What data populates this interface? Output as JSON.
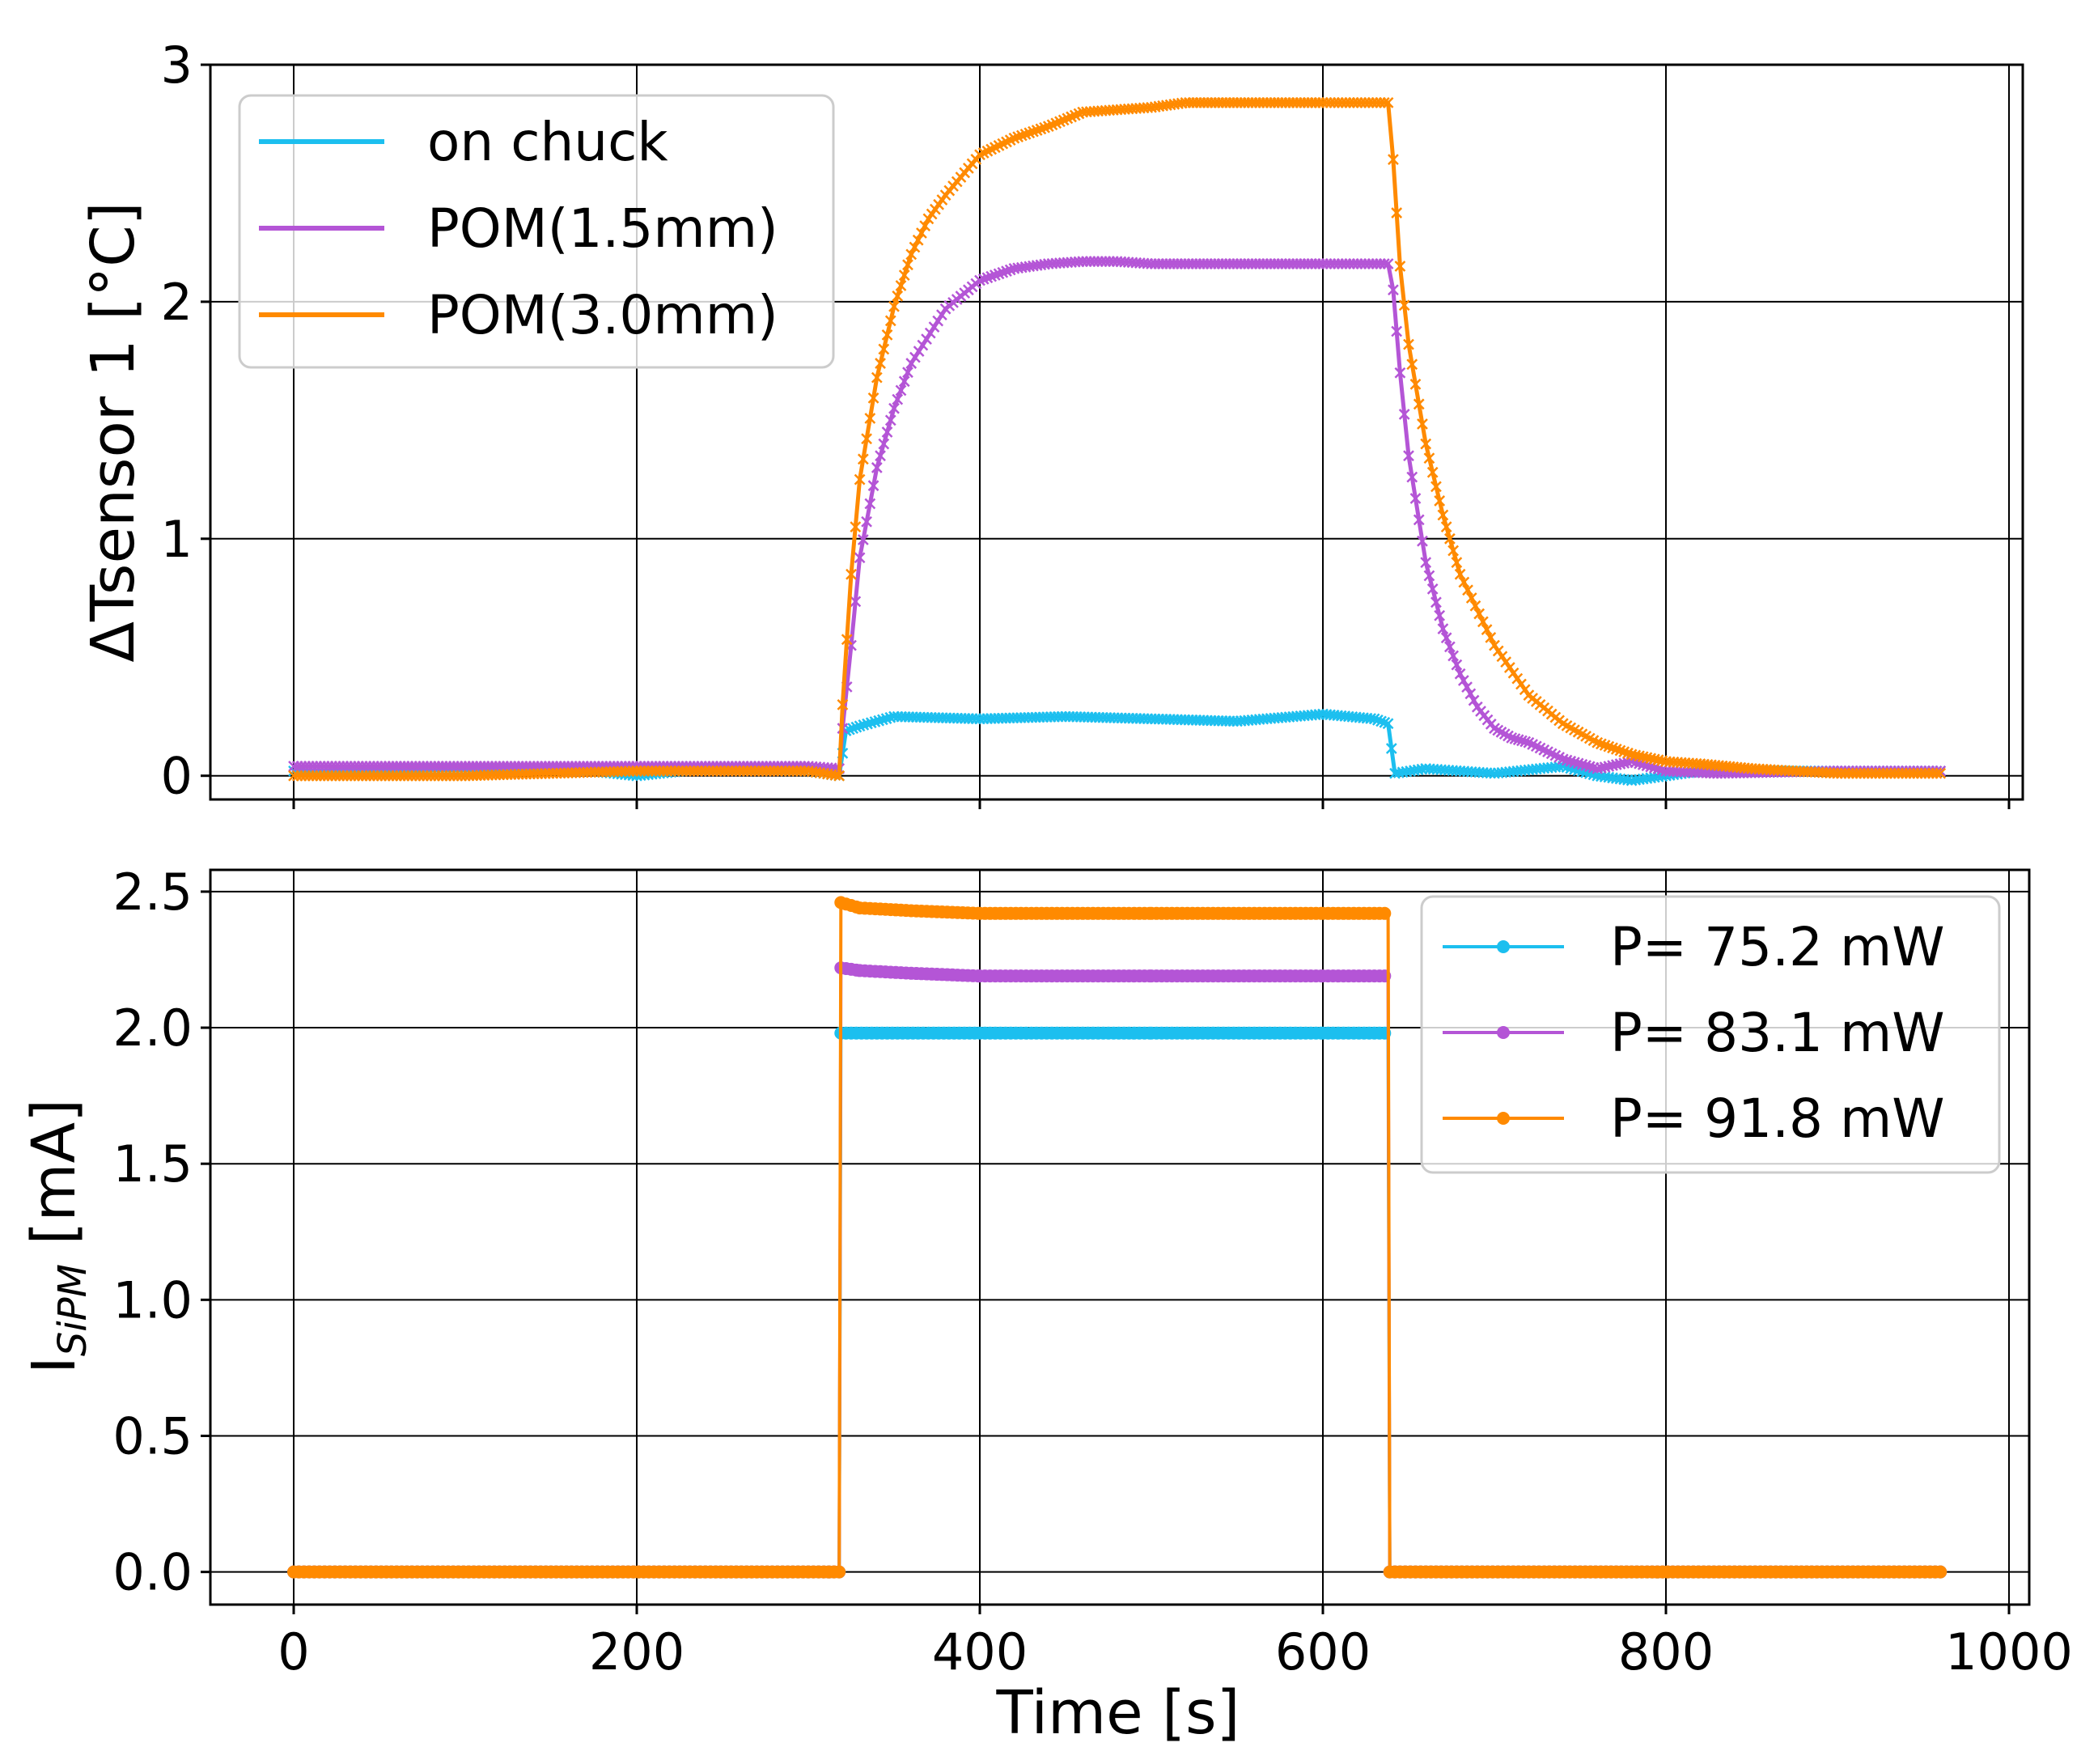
{
  "chart_data": [
    {
      "type": "line",
      "panel": "top",
      "title": "",
      "xlabel": "",
      "ylabel": "ΔTsensor 1 [°C]",
      "xlim": [
        -50,
        1000
      ],
      "ylim": [
        -0.1,
        3.0
      ],
      "x_ticks": [
        0,
        200,
        400,
        600,
        800,
        1000
      ],
      "y_ticks": [
        0,
        1,
        2,
        3
      ],
      "y_tick_labels": [
        "0",
        "1",
        "2",
        "3"
      ],
      "grid": true,
      "marker": "x",
      "legend_position": "upper-left",
      "series": [
        {
          "name": "on chuck",
          "color": "#1cbfef",
          "x": [
            0,
            80,
            160,
            200,
            240,
            300,
            318,
            322,
            330,
            350,
            400,
            450,
            500,
            550,
            600,
            630,
            638,
            642,
            660,
            700,
            740,
            760,
            780,
            820,
            880,
            960
          ],
          "y": [
            0.02,
            0.03,
            0.03,
            0.0,
            0.03,
            0.02,
            0.0,
            0.19,
            0.21,
            0.25,
            0.24,
            0.25,
            0.24,
            0.23,
            0.26,
            0.24,
            0.22,
            0.01,
            0.03,
            0.01,
            0.04,
            0.0,
            -0.02,
            0.02,
            0.02,
            0.02
          ]
        },
        {
          "name": "POM(1.5mm)",
          "color": "#b455d6",
          "x": [
            0,
            100,
            200,
            300,
            318,
            320,
            325,
            330,
            340,
            350,
            360,
            380,
            400,
            420,
            440,
            460,
            480,
            500,
            550,
            600,
            638,
            641,
            645,
            650,
            660,
            670,
            680,
            690,
            700,
            710,
            720,
            740,
            760,
            780,
            800,
            830,
            900,
            960
          ],
          "y": [
            0.04,
            0.04,
            0.04,
            0.04,
            0.03,
            0.2,
            0.55,
            0.92,
            1.3,
            1.55,
            1.74,
            1.97,
            2.09,
            2.14,
            2.16,
            2.17,
            2.17,
            2.16,
            2.16,
            2.16,
            2.16,
            2.05,
            1.7,
            1.35,
            0.9,
            0.62,
            0.43,
            0.29,
            0.2,
            0.16,
            0.14,
            0.07,
            0.03,
            0.06,
            0.02,
            0.01,
            0.02,
            0.02
          ]
        },
        {
          "name": "POM(3.0mm)",
          "color": "#ff8a00",
          "x": [
            0,
            100,
            200,
            300,
            318,
            320,
            325,
            330,
            340,
            350,
            360,
            370,
            380,
            400,
            420,
            440,
            460,
            480,
            500,
            520,
            550,
            600,
            638,
            641,
            645,
            650,
            660,
            670,
            680,
            700,
            720,
            740,
            760,
            780,
            800,
            820,
            850,
            900,
            960
          ],
          "y": [
            0.0,
            0.0,
            0.02,
            0.02,
            0.0,
            0.3,
            0.85,
            1.25,
            1.68,
            1.98,
            2.2,
            2.35,
            2.45,
            2.62,
            2.69,
            2.74,
            2.8,
            2.81,
            2.82,
            2.84,
            2.84,
            2.84,
            2.84,
            2.6,
            2.15,
            1.82,
            1.4,
            1.1,
            0.85,
            0.55,
            0.34,
            0.22,
            0.14,
            0.09,
            0.06,
            0.05,
            0.03,
            0.01,
            0.01
          ]
        }
      ]
    },
    {
      "type": "line",
      "panel": "bottom",
      "title": "",
      "xlabel": "Time [s]",
      "ylabel_main": "I",
      "ylabel_sub": "SiPM",
      "ylabel_units": " [mA]",
      "xlim": [
        -50,
        1005
      ],
      "ylim": [
        -0.12,
        2.58
      ],
      "x_ticks": [
        0,
        200,
        400,
        600,
        800,
        1000
      ],
      "x_tick_labels": [
        "0",
        "200",
        "400",
        "600",
        "800",
        "1000"
      ],
      "y_ticks": [
        0.0,
        0.5,
        1.0,
        1.5,
        2.0,
        2.5
      ],
      "y_tick_labels": [
        "0.0",
        "0.5",
        "1.0",
        "1.5",
        "2.0",
        "2.5"
      ],
      "grid": true,
      "marker": "o",
      "legend_position": "upper-right",
      "series": [
        {
          "name": "P= 75.2 mW",
          "color": "#1cbfef",
          "x": [
            0,
            318,
            319,
            400,
            500,
            600,
            638,
            639,
            960
          ],
          "y": [
            0.0,
            0.0,
            1.98,
            1.98,
            1.98,
            1.98,
            1.98,
            0.0,
            0.0
          ]
        },
        {
          "name": "P= 83.1 mW",
          "color": "#b455d6",
          "x": [
            0,
            318,
            319,
            330,
            360,
            400,
            500,
            600,
            638,
            639,
            960
          ],
          "y": [
            0.0,
            0.0,
            2.22,
            2.21,
            2.2,
            2.19,
            2.19,
            2.19,
            2.19,
            0.0,
            0.0
          ]
        },
        {
          "name": "P= 91.8 mW",
          "color": "#ff8a00",
          "x": [
            0,
            318,
            319,
            330,
            360,
            400,
            500,
            600,
            638,
            639,
            960
          ],
          "y": [
            0.0,
            0.0,
            2.46,
            2.44,
            2.43,
            2.42,
            2.42,
            2.42,
            2.42,
            0.0,
            0.0
          ]
        }
      ]
    }
  ]
}
